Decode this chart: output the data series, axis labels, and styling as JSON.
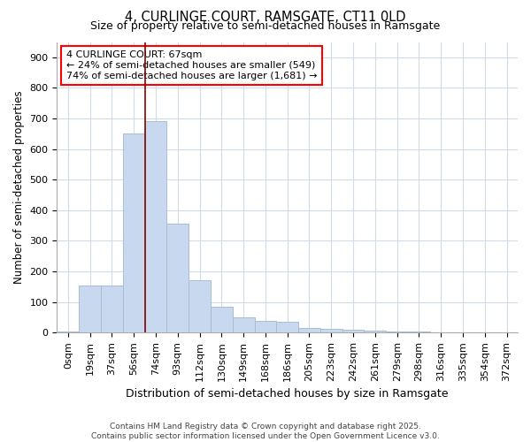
{
  "title": "4, CURLINGE COURT, RAMSGATE, CT11 0LD",
  "subtitle": "Size of property relative to semi-detached houses in Ramsgate",
  "xlabel": "Distribution of semi-detached houses by size in Ramsgate",
  "ylabel": "Number of semi-detached properties",
  "bar_labels": [
    "0sqm",
    "19sqm",
    "37sqm",
    "56sqm",
    "74sqm",
    "93sqm",
    "112sqm",
    "130sqm",
    "149sqm",
    "168sqm",
    "186sqm",
    "205sqm",
    "223sqm",
    "242sqm",
    "261sqm",
    "279sqm",
    "298sqm",
    "316sqm",
    "335sqm",
    "354sqm",
    "372sqm"
  ],
  "bar_values": [
    5,
    155,
    155,
    650,
    690,
    355,
    170,
    85,
    50,
    38,
    35,
    15,
    12,
    9,
    8,
    5,
    3,
    2,
    1,
    0,
    0
  ],
  "bar_color": "#c8d9ef",
  "bar_edge_color": "#a8bdd8",
  "red_line_x": 3.5,
  "annotation_line1": "4 CURLINGE COURT: 67sqm",
  "annotation_line2": "← 24% of semi-detached houses are smaller (549)",
  "annotation_line3": "74% of semi-detached houses are larger (1,681) →",
  "footer_text": "Contains HM Land Registry data © Crown copyright and database right 2025.\nContains public sector information licensed under the Open Government Licence v3.0.",
  "ylim": [
    0,
    950
  ],
  "yticks": [
    0,
    100,
    200,
    300,
    400,
    500,
    600,
    700,
    800,
    900
  ],
  "title_fontsize": 10.5,
  "subtitle_fontsize": 9,
  "axis_label_fontsize": 8.5,
  "tick_fontsize": 8,
  "annotation_fontsize": 8,
  "background_color": "#ffffff",
  "grid_color": "#d0dcea"
}
